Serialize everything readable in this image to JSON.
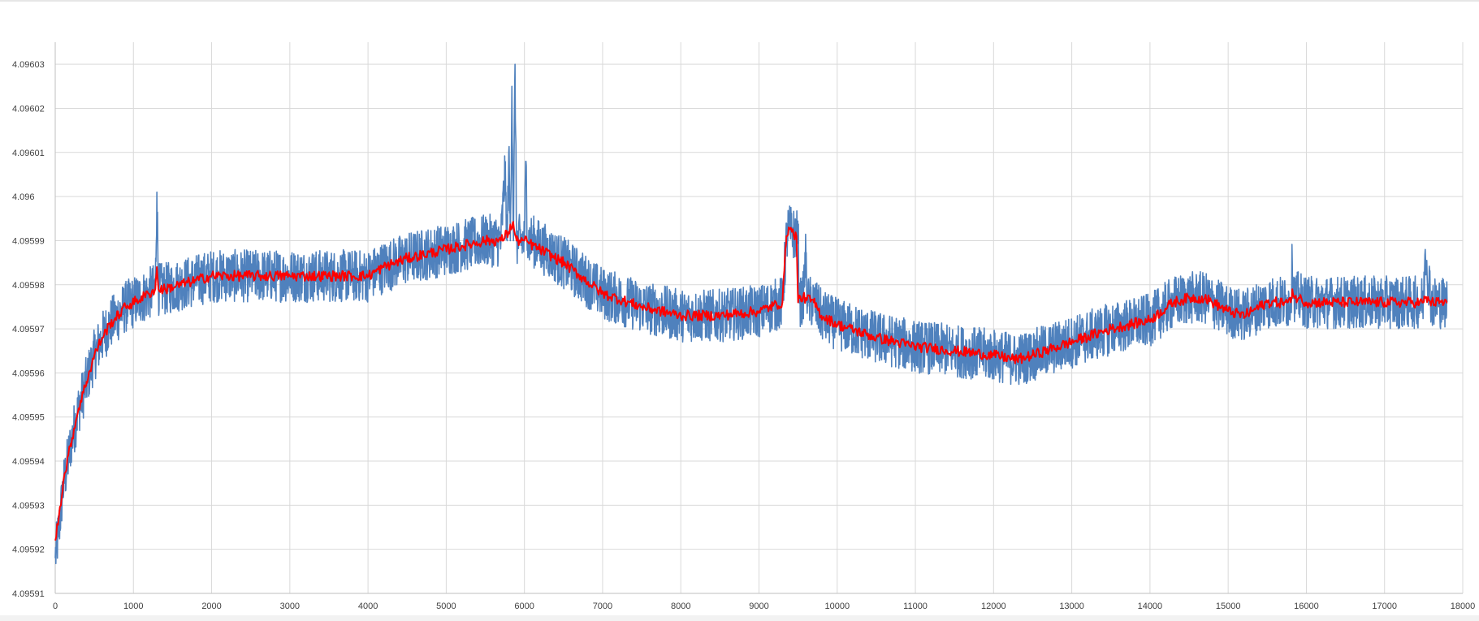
{
  "chart_data": {
    "type": "line",
    "title": "",
    "xlabel": "",
    "ylabel": "",
    "xlim": [
      0,
      18000
    ],
    "ylim": [
      4.09591,
      4.096035
    ],
    "grid": true,
    "legend": "none",
    "x_ticks": [
      0,
      1000,
      2000,
      3000,
      4000,
      5000,
      6000,
      7000,
      8000,
      9000,
      10000,
      11000,
      12000,
      13000,
      14000,
      15000,
      16000,
      17000,
      18000
    ],
    "y_ticks": [
      "4.09591",
      "4.09592",
      "4.09593",
      "4.09594",
      "4.09595",
      "4.09596",
      "4.09597",
      "4.09598",
      "4.09599",
      "4.096",
      "4.09601",
      "4.09602",
      "4.09603"
    ],
    "series": [
      {
        "color": "#4f81bd",
        "noise_band": 6e-06,
        "x": [
          0,
          50,
          100,
          200,
          300,
          400,
          500,
          600,
          700,
          800,
          900,
          1000,
          1100,
          1200,
          1280,
          1300,
          1320,
          1400,
          1600,
          1800,
          2000,
          2500,
          3000,
          3500,
          4000,
          4200,
          4500,
          5000,
          5500,
          5700,
          5750,
          5780,
          5800,
          5820,
          5840,
          5860,
          5880,
          5900,
          5950,
          6000,
          6020,
          6040,
          6100,
          6500,
          7000,
          7500,
          8000,
          8500,
          9000,
          9300,
          9350,
          9380,
          9400,
          9500,
          9520,
          9560,
          9600,
          9620,
          9640,
          9700,
          9800,
          10000,
          10500,
          11000,
          11500,
          12000,
          12300,
          12500,
          13000,
          13500,
          14000,
          14300,
          14500,
          14700,
          15000,
          15200,
          15500,
          15700,
          15800,
          15820,
          15850,
          15900,
          16000,
          16500,
          17000,
          17400,
          17500,
          17520,
          17600,
          17800
        ],
        "y": [
          4.095918,
          4.095925,
          4.095934,
          4.095944,
          4.095952,
          4.095958,
          4.095964,
          4.095968,
          4.095971,
          4.095973,
          4.095975,
          4.095976,
          4.095977,
          4.095978,
          4.095979,
          4.096001,
          4.095979,
          4.095979,
          4.09598,
          4.095981,
          4.095982,
          4.095982,
          4.095982,
          4.095982,
          4.095982,
          4.095984,
          4.095986,
          4.095988,
          4.09599,
          4.09599,
          4.096005,
          4.09599,
          4.09601,
          4.09599,
          4.096025,
          4.09599,
          4.09603,
          4.09599,
          4.09599,
          4.09599,
          4.096008,
          4.09599,
          4.09599,
          4.095985,
          4.095978,
          4.095975,
          4.095973,
          4.095973,
          4.095974,
          4.095976,
          4.09599,
          4.095993,
          4.095992,
          4.095991,
          4.095976,
          4.095976,
          4.095987,
          4.095976,
          4.095976,
          4.095976,
          4.095973,
          4.095971,
          4.095968,
          4.095966,
          4.095965,
          4.095964,
          4.095963,
          4.095964,
          4.095967,
          4.09597,
          4.095972,
          4.095976,
          4.095977,
          4.095977,
          4.095974,
          4.095973,
          4.095976,
          4.095976,
          4.095976,
          4.095985,
          4.095977,
          4.095977,
          4.095976,
          4.095976,
          4.095976,
          4.095976,
          4.095976,
          4.095988,
          4.095976,
          4.095976
        ]
      },
      {
        "color": "#ff0000",
        "noise_band": 1.2e-06,
        "x": [
          0,
          50,
          100,
          200,
          300,
          400,
          500,
          600,
          700,
          800,
          900,
          1000,
          1100,
          1200,
          1280,
          1300,
          1320,
          1400,
          1600,
          1800,
          2000,
          2500,
          3000,
          3500,
          4000,
          4200,
          4500,
          5000,
          5500,
          5700,
          5800,
          5850,
          5900,
          6000,
          6500,
          7000,
          7500,
          8000,
          8500,
          9000,
          9300,
          9350,
          9380,
          9420,
          9480,
          9500,
          9520,
          9600,
          9700,
          9800,
          10000,
          10500,
          11000,
          11500,
          12000,
          12300,
          12500,
          13000,
          13500,
          14000,
          14300,
          14500,
          14700,
          15000,
          15200,
          15500,
          15700,
          15800,
          15820,
          15850,
          15900,
          16000,
          16500,
          17000,
          17400,
          17500,
          17520,
          17600,
          17800
        ],
        "y": [
          4.095922,
          4.095928,
          4.095935,
          4.095944,
          4.095952,
          4.095958,
          4.095964,
          4.095968,
          4.095971,
          4.095973,
          4.095975,
          4.095976,
          4.095977,
          4.095978,
          4.095979,
          4.095984,
          4.095979,
          4.095979,
          4.09598,
          4.095981,
          4.095982,
          4.095982,
          4.095982,
          4.095982,
          4.095982,
          4.095984,
          4.095986,
          4.095988,
          4.09599,
          4.09599,
          4.095992,
          4.095994,
          4.09599,
          4.09599,
          4.095985,
          4.095978,
          4.095975,
          4.095973,
          4.095973,
          4.095974,
          4.095976,
          4.095991,
          4.095993,
          4.095992,
          4.095991,
          4.095976,
          4.095977,
          4.095977,
          4.095976,
          4.095973,
          4.095971,
          4.095968,
          4.095966,
          4.095965,
          4.095964,
          4.095963,
          4.095964,
          4.095967,
          4.09597,
          4.095972,
          4.095976,
          4.095977,
          4.095977,
          4.095974,
          4.095973,
          4.095976,
          4.095976,
          4.095976,
          4.095979,
          4.095977,
          4.095977,
          4.095976,
          4.095976,
          4.095976,
          4.095976,
          4.095976,
          4.095977,
          4.095976,
          4.095976
        ]
      }
    ]
  }
}
